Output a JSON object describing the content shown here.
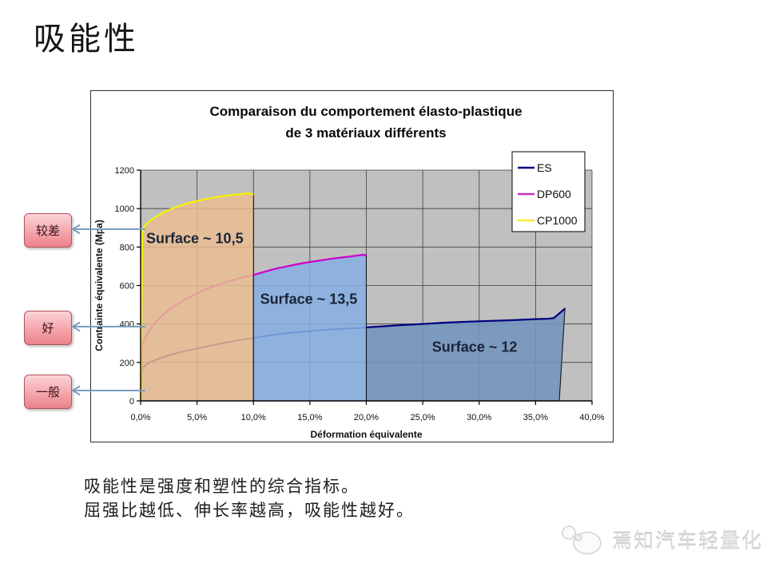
{
  "slide": {
    "title": "吸能性",
    "body_text": [
      "吸能性是强度和塑性的综合指标。",
      "屈强比越低、伸长率越高，吸能性越好。"
    ],
    "watermark": "焉知汽车轻量化"
  },
  "annotations": {
    "labels": [
      {
        "id": "poor",
        "text": "较差"
      },
      {
        "id": "good",
        "text": "好"
      },
      {
        "id": "average",
        "text": "一般"
      }
    ]
  },
  "colors": {
    "accent_arrow": "#7d9cc0",
    "badge_fill_top": "#fbd4d7",
    "badge_fill_mid": "#f4a6ac",
    "badge_fill_bottom": "#ec8289",
    "badge_border": "#b4525e",
    "plot_background": "#c0c0c0"
  },
  "chart_data": {
    "type": "area",
    "title": "Comparaison du comportement élasto-plastique de 3 matériaux différents",
    "title_lines": [
      "Comparaison du comportement élasto-plastique",
      "de 3 matériaux différents"
    ],
    "xlabel": "Déformation équivalente",
    "ylabel": "Contrainte équivalente (Mpa)",
    "xlim": [
      0,
      40
    ],
    "ylim": [
      0,
      1200
    ],
    "x_tick_step": 5,
    "y_tick_step": 200,
    "x_tick_labels": [
      "0,0%",
      "5,0%",
      "10,0%",
      "15,0%",
      "20,0%",
      "25,0%",
      "30,0%",
      "35,0%",
      "40,0%"
    ],
    "y_tick_labels": [
      "0",
      "200",
      "400",
      "600",
      "800",
      "1000",
      "1200"
    ],
    "grid": true,
    "plot_bg": "#c0c0c0",
    "legend": {
      "position": "top-right",
      "entries": [
        {
          "label": "ES",
          "color": "#000080"
        },
        {
          "label": "DP600",
          "color": "#c432c4"
        },
        {
          "label": "CP1000",
          "color": "#f2ee30"
        }
      ]
    },
    "series": [
      {
        "name": "ES",
        "color": "#000080",
        "redraw_from": 20,
        "x": [
          0,
          0.12,
          0.5,
          1,
          2,
          3,
          4,
          5,
          6,
          7,
          8,
          9,
          10,
          11,
          12,
          13,
          14,
          15,
          16,
          17,
          18,
          19,
          20,
          21,
          22,
          23,
          25,
          27,
          29,
          31,
          33,
          35,
          36,
          36.6,
          37.6
        ],
        "y": [
          0,
          165,
          190,
          205,
          228,
          245,
          260,
          272,
          285,
          297,
          308,
          318,
          327,
          337,
          345,
          352,
          358,
          363,
          368,
          372,
          375,
          378,
          382,
          386,
          390,
          394,
          400,
          407,
          412,
          416,
          420,
          425,
          427,
          430,
          480
        ]
      },
      {
        "name": "DP600",
        "color": "#cc00cc",
        "redraw_from": 10,
        "x": [
          0,
          0.15,
          0.5,
          1,
          1.5,
          2,
          3,
          4,
          5,
          6,
          7,
          8,
          9,
          10,
          11,
          12,
          13,
          14,
          15,
          16,
          17,
          18,
          19,
          19.7,
          20
        ],
        "y": [
          0,
          295,
          340,
          385,
          420,
          450,
          495,
          530,
          560,
          585,
          607,
          625,
          642,
          655,
          672,
          688,
          700,
          712,
          722,
          731,
          740,
          747,
          754,
          760,
          757
        ]
      },
      {
        "name": "CP1000",
        "color": "#f5f200",
        "redraw_from": 0,
        "x": [
          0,
          0.15,
          0.4,
          1,
          2,
          3,
          4,
          5,
          6,
          7,
          8,
          9,
          9.6,
          10
        ],
        "y": [
          0,
          870,
          915,
          945,
          980,
          1005,
          1025,
          1040,
          1052,
          1062,
          1070,
          1076,
          1080,
          1072
        ]
      }
    ],
    "areas": [
      {
        "label": "Surface ~ 10,5",
        "series": "CP1000",
        "x_from": 0,
        "x_to": 10,
        "close_x": 10,
        "fill": "#eabd90",
        "opacity": 0.82,
        "label_x": 4.8,
        "label_y": 820
      },
      {
        "label": "Surface ~ 13,5",
        "series": "DP600",
        "x_from": 10,
        "x_to": 20,
        "close_x": 20,
        "fill": "#85aee3",
        "opacity": 0.85,
        "label_x": 14.9,
        "label_y": 505
      },
      {
        "label": "Surface ~ 12",
        "series": "ES",
        "x_from": 20,
        "x_to": 37.6,
        "close_x": 37.1,
        "fill": "#7396bc",
        "opacity": 0.9,
        "label_x": 29.6,
        "label_y": 255
      }
    ]
  }
}
